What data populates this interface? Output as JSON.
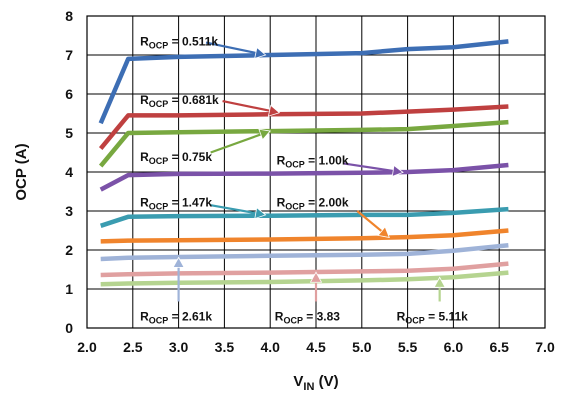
{
  "chart_data": {
    "type": "line",
    "xlabel": "V",
    "xlabel_sub": "IN",
    "xlabel_unit": " (V)",
    "ylabel": "OCP (A)",
    "xlim": [
      2.0,
      7.0
    ],
    "ylim": [
      0,
      8
    ],
    "x_ticks": [
      "2.0",
      "2.5",
      "3.0",
      "3.5",
      "4.0",
      "4.5",
      "5.0",
      "5.5",
      "6.0",
      "6.5",
      "7.0"
    ],
    "y_ticks": [
      "0",
      "1",
      "2",
      "3",
      "4",
      "5",
      "6",
      "7",
      "8"
    ],
    "grid": true,
    "series": [
      {
        "color": "#3d6eb4",
        "points": [
          [
            2.15,
            5.25
          ],
          [
            2.45,
            6.9
          ],
          [
            3.0,
            6.95
          ],
          [
            4.0,
            7.0
          ],
          [
            5.0,
            7.05
          ],
          [
            5.5,
            7.15
          ],
          [
            6.0,
            7.2
          ],
          [
            6.6,
            7.35
          ]
        ]
      },
      {
        "color": "#bf4040",
        "points": [
          [
            2.15,
            4.6
          ],
          [
            2.45,
            5.45
          ],
          [
            3.0,
            5.45
          ],
          [
            4.0,
            5.48
          ],
          [
            5.0,
            5.5
          ],
          [
            5.5,
            5.55
          ],
          [
            6.0,
            5.6
          ],
          [
            6.6,
            5.68
          ]
        ]
      },
      {
        "color": "#78a840",
        "points": [
          [
            2.15,
            4.15
          ],
          [
            2.45,
            5.0
          ],
          [
            3.0,
            5.02
          ],
          [
            4.0,
            5.05
          ],
          [
            5.0,
            5.08
          ],
          [
            5.5,
            5.1
          ],
          [
            6.0,
            5.18
          ],
          [
            6.6,
            5.28
          ]
        ]
      },
      {
        "color": "#7b52a8",
        "points": [
          [
            2.15,
            3.55
          ],
          [
            2.45,
            3.92
          ],
          [
            3.0,
            3.95
          ],
          [
            4.0,
            3.96
          ],
          [
            5.0,
            3.98
          ],
          [
            5.5,
            4.0
          ],
          [
            6.0,
            4.05
          ],
          [
            6.6,
            4.18
          ]
        ]
      },
      {
        "color": "#3a9cb0",
        "points": [
          [
            2.15,
            2.62
          ],
          [
            2.45,
            2.85
          ],
          [
            3.0,
            2.87
          ],
          [
            4.0,
            2.88
          ],
          [
            5.0,
            2.9
          ],
          [
            5.5,
            2.9
          ],
          [
            6.0,
            2.95
          ],
          [
            6.6,
            3.05
          ]
        ]
      },
      {
        "color": "#f0842c",
        "points": [
          [
            2.15,
            2.22
          ],
          [
            2.45,
            2.24
          ],
          [
            3.0,
            2.25
          ],
          [
            4.0,
            2.27
          ],
          [
            5.0,
            2.3
          ],
          [
            5.5,
            2.33
          ],
          [
            6.0,
            2.38
          ],
          [
            6.6,
            2.5
          ]
        ]
      },
      {
        "color": "#9fb3d8",
        "points": [
          [
            2.15,
            1.77
          ],
          [
            2.45,
            1.8
          ],
          [
            3.0,
            1.82
          ],
          [
            4.0,
            1.85
          ],
          [
            5.0,
            1.88
          ],
          [
            5.5,
            1.9
          ],
          [
            6.0,
            1.98
          ],
          [
            6.6,
            2.12
          ]
        ]
      },
      {
        "color": "#e0a0a0",
        "points": [
          [
            2.15,
            1.36
          ],
          [
            2.45,
            1.38
          ],
          [
            3.0,
            1.4
          ],
          [
            4.0,
            1.42
          ],
          [
            5.0,
            1.45
          ],
          [
            5.5,
            1.47
          ],
          [
            6.0,
            1.52
          ],
          [
            6.6,
            1.65
          ]
        ]
      },
      {
        "color": "#b5d490",
        "points": [
          [
            2.15,
            1.12
          ],
          [
            2.45,
            1.14
          ],
          [
            3.0,
            1.16
          ],
          [
            4.0,
            1.18
          ],
          [
            5.0,
            1.22
          ],
          [
            5.5,
            1.25
          ],
          [
            6.0,
            1.3
          ],
          [
            6.6,
            1.42
          ]
        ]
      }
    ],
    "annotations": [
      {
        "main": "R",
        "sub": "OCP",
        "rest": " = 0.511k",
        "x": 2.58,
        "y": 7.35,
        "arrow": [
          3.3,
          7.32,
          3.95,
          7.0
        ],
        "arrow_color": "#3d6eb4"
      },
      {
        "main": "R",
        "sub": "OCP",
        "rest": " = 0.681k",
        "x": 2.58,
        "y": 5.85,
        "arrow": [
          3.48,
          5.82,
          4.1,
          5.52
        ],
        "arrow_color": "#bf4040"
      },
      {
        "main": "R",
        "sub": "OCP",
        "rest": " = 0.75k",
        "x": 2.58,
        "y": 4.38,
        "arrow": [
          3.35,
          4.5,
          4.0,
          5.05
        ],
        "arrow_color": "#78a840"
      },
      {
        "main": "R",
        "sub": "OCP",
        "rest": " = 1.00k",
        "x": 4.07,
        "y": 4.3,
        "arrow": [
          4.8,
          4.22,
          5.45,
          3.99
        ],
        "arrow_color": "#7b52a8"
      },
      {
        "main": "R",
        "sub": "OCP",
        "rest": " = 1.47k",
        "x": 2.58,
        "y": 3.22,
        "arrow": [
          3.35,
          3.15,
          3.95,
          2.9
        ],
        "arrow_color": "#3a9cb0"
      },
      {
        "main": "R",
        "sub": "OCP",
        "rest": " = 2.00k",
        "x": 4.07,
        "y": 3.22,
        "arrow": [
          4.95,
          3.0,
          5.3,
          2.32
        ],
        "arrow_color": "#f0842c"
      },
      {
        "main": "R",
        "sub": "OCP",
        "rest": " = 2.61k",
        "x": 2.58,
        "y": 0.3,
        "arrow": [
          3.0,
          0.68,
          3.0,
          1.81
        ],
        "arrow_color": "#9fb3d8"
      },
      {
        "main": "R",
        "sub": "OCP",
        "rest": " = 3.83",
        "x": 4.05,
        "y": 0.3,
        "arrow": [
          4.5,
          0.68,
          4.5,
          1.43
        ],
        "arrow_color": "#e0a0a0"
      },
      {
        "main": "R",
        "sub": "OCP",
        "rest": " = 5.11k",
        "x": 5.38,
        "y": 0.3,
        "arrow": [
          5.85,
          0.68,
          5.85,
          1.3
        ],
        "arrow_color": "#b5d490"
      }
    ]
  }
}
